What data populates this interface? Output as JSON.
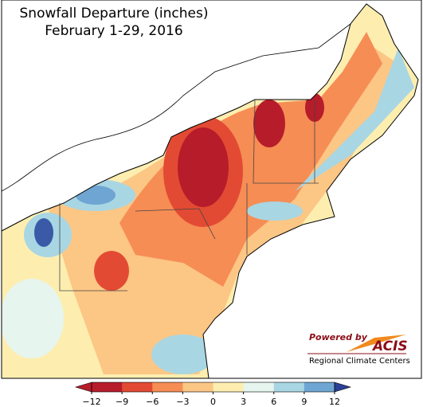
{
  "map": {
    "title": "Snowfall Departure (inches)",
    "subtitle": "February 1-29, 2016",
    "colorbar": {
      "lim": [
        -12,
        12
      ],
      "ticks": [
        {
          "value": -12,
          "label": "−12"
        },
        {
          "value": -9,
          "label": "−9"
        },
        {
          "value": -6,
          "label": "−6"
        },
        {
          "value": -3,
          "label": "−3"
        },
        0,
        3,
        6,
        9,
        12
      ],
      "colors": [
        "#b71c2b",
        "#e34a33",
        "#f68d55",
        "#fcc685",
        "#fdeeb0",
        "#e6f5ee",
        "#a9d6e3",
        "#6ea5d3"
      ],
      "under_color": "#b71c2b",
      "over_color": "#2c3f96"
    }
  },
  "logo": {
    "powered_by": "Powered by",
    "name": "ACIS",
    "tagline": "Regional Climate Centers"
  }
}
